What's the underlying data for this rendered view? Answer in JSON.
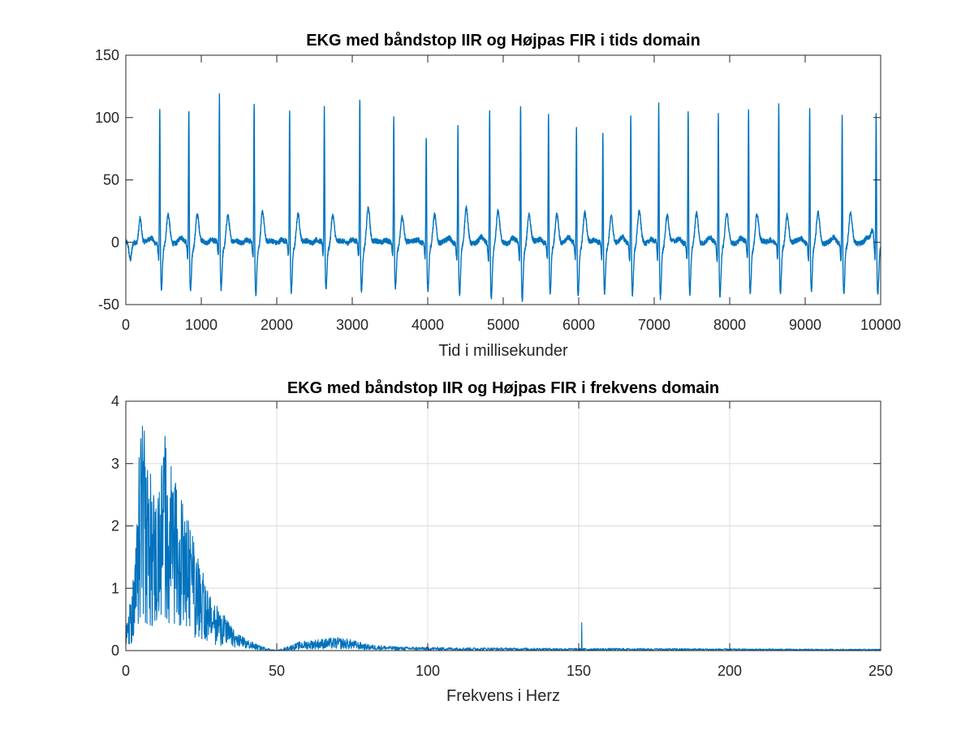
{
  "chart_data": [
    {
      "type": "line",
      "title": "EKG med båndstop IIR og Højpas FIR i tids domain",
      "xlabel": "Tid i millisekunder",
      "ylabel": "",
      "xlim": [
        0,
        10000
      ],
      "ylim": [
        -50,
        150
      ],
      "xticks": [
        0,
        1000,
        2000,
        3000,
        4000,
        5000,
        6000,
        7000,
        8000,
        9000,
        10000
      ],
      "yticks": [
        -50,
        0,
        50,
        100,
        150
      ],
      "xtick_labels": [
        "0",
        "1000",
        "2000",
        "3000",
        "4000",
        "5000",
        "6000",
        "7000",
        "8000",
        "9000",
        "10000"
      ],
      "ytick_labels": [
        "-50",
        "0",
        "50",
        "100",
        "150"
      ],
      "grid": false,
      "color": "#0072BD",
      "baseline": 0,
      "beats": [
        {
          "t": 450,
          "peak": 116,
          "trough": -35,
          "twave": 23
        },
        {
          "t": 835,
          "peak": 119,
          "trough": -35,
          "twave": 23
        },
        {
          "t": 1240,
          "peak": 127,
          "trough": -35,
          "twave": 24
        },
        {
          "t": 1700,
          "peak": 123,
          "trough": -40,
          "twave": 27
        },
        {
          "t": 2170,
          "peak": 116,
          "trough": -38,
          "twave": 25
        },
        {
          "t": 2630,
          "peak": 117,
          "trough": -35,
          "twave": 24
        },
        {
          "t": 3100,
          "peak": 126,
          "trough": -37,
          "twave": 30
        },
        {
          "t": 3550,
          "peak": 111,
          "trough": -35,
          "twave": 23
        },
        {
          "t": 3980,
          "peak": 96,
          "trough": -37,
          "twave": 24
        },
        {
          "t": 4400,
          "peak": 105,
          "trough": -40,
          "twave": 28
        },
        {
          "t": 4820,
          "peak": 118,
          "trough": -42,
          "twave": 25
        },
        {
          "t": 5230,
          "peak": 124,
          "trough": -43,
          "twave": 24
        },
        {
          "t": 5600,
          "peak": 114,
          "trough": -40,
          "twave": 25
        },
        {
          "t": 5970,
          "peak": 104,
          "trough": -38,
          "twave": 24
        },
        {
          "t": 6320,
          "peak": 97,
          "trough": -39,
          "twave": 23
        },
        {
          "t": 6690,
          "peak": 115,
          "trough": -38,
          "twave": 25
        },
        {
          "t": 7060,
          "peak": 122,
          "trough": -42,
          "twave": 24
        },
        {
          "t": 7450,
          "peak": 117,
          "trough": -40,
          "twave": 25
        },
        {
          "t": 7850,
          "peak": 117,
          "trough": -40,
          "twave": 23
        },
        {
          "t": 8250,
          "peak": 118,
          "trough": -38,
          "twave": 24
        },
        {
          "t": 8650,
          "peak": 122,
          "trough": -40,
          "twave": 24
        },
        {
          "t": 9060,
          "peak": 120,
          "trough": -37,
          "twave": 25
        },
        {
          "t": 9490,
          "peak": 113,
          "trough": -38,
          "twave": 24
        },
        {
          "t": 9940,
          "peak": 114,
          "trough": -38,
          "twave": 10
        }
      ],
      "extra_waves": [
        {
          "t": 60,
          "v": -15
        },
        {
          "t": 190,
          "v": 20
        },
        {
          "t": 9890,
          "v": 10
        }
      ]
    },
    {
      "type": "line",
      "title": "EKG med båndstop IIR og Højpas FIR i frekvens domain",
      "xlabel": "Frekvens i Herz",
      "ylabel": "",
      "xlim": [
        0,
        250
      ],
      "ylim": [
        0,
        4
      ],
      "xticks": [
        0,
        50,
        100,
        150,
        200,
        250
      ],
      "yticks": [
        0,
        1,
        2,
        3,
        4
      ],
      "xtick_labels": [
        "0",
        "50",
        "100",
        "150",
        "200",
        "250"
      ],
      "ytick_labels": [
        "0",
        "1",
        "2",
        "3",
        "4"
      ],
      "grid": true,
      "color": "#0072BD",
      "envelope": [
        [
          0,
          0.4
        ],
        [
          2,
          0.7
        ],
        [
          4,
          1.9
        ],
        [
          5,
          3.4
        ],
        [
          7,
          2.5
        ],
        [
          10,
          2.0
        ],
        [
          13,
          2.8
        ],
        [
          16,
          2.2
        ],
        [
          20,
          1.8
        ],
        [
          24,
          1.2
        ],
        [
          28,
          0.7
        ],
        [
          32,
          0.5
        ],
        [
          36,
          0.25
        ],
        [
          40,
          0.15
        ],
        [
          44,
          0.07
        ],
        [
          48,
          0.02
        ],
        [
          50,
          0.0
        ],
        [
          54,
          0.06
        ],
        [
          58,
          0.12
        ],
        [
          64,
          0.15
        ],
        [
          70,
          0.17
        ],
        [
          74,
          0.15
        ],
        [
          80,
          0.08
        ],
        [
          90,
          0.05
        ],
        [
          110,
          0.04
        ],
        [
          130,
          0.035
        ],
        [
          150,
          0.03
        ],
        [
          170,
          0.03
        ],
        [
          200,
          0.025
        ],
        [
          230,
          0.02
        ],
        [
          250,
          0.02
        ]
      ],
      "spikes": [
        {
          "x": 5,
          "v": 3.4
        },
        {
          "x": 6,
          "v": 3.0
        },
        {
          "x": 12.5,
          "v": 3.1
        },
        {
          "x": 151,
          "v": 0.45
        }
      ]
    }
  ]
}
